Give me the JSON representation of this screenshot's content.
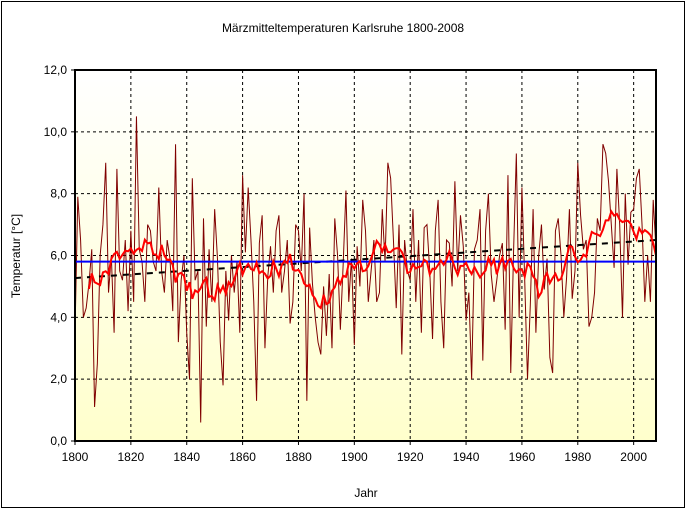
{
  "chart_data": {
    "type": "line",
    "title": "Märzmitteltemperaturen Karlsruhe 1800-2008",
    "xlabel": "Jahr",
    "ylabel": "Temperatur [°C]",
    "xlim": [
      1800,
      2008
    ],
    "ylim": [
      0,
      12
    ],
    "x_ticks": [
      1800,
      1820,
      1840,
      1860,
      1880,
      1900,
      1920,
      1940,
      1960,
      1980,
      2000
    ],
    "y_ticks": [
      0,
      2,
      4,
      6,
      8,
      10,
      12
    ],
    "x_tick_labels": [
      "1800",
      "1820",
      "1840",
      "1860",
      "1880",
      "1900",
      "1920",
      "1940",
      "1960",
      "1980",
      "2000"
    ],
    "y_tick_labels": [
      "0,0",
      "2,0",
      "4,0",
      "6,0",
      "8,0",
      "10,0",
      "12,0"
    ],
    "grid": true,
    "start_year": 1800,
    "annual_values": [
      3.5,
      7.9,
      6.5,
      4.0,
      4.3,
      5.1,
      6.2,
      1.1,
      2.5,
      6.0,
      7.0,
      9.0,
      4.8,
      6.0,
      3.5,
      8.8,
      5.5,
      5.2,
      6.5,
      4.2,
      6.8,
      4.5,
      10.5,
      6.2,
      5.8,
      4.5,
      7.0,
      6.8,
      5.8,
      5.5,
      8.2,
      5.5,
      4.8,
      6.5,
      5.9,
      4.2,
      9.6,
      3.2,
      5.2,
      6.0,
      3.5,
      2.0,
      8.5,
      5.2,
      5.5,
      0.6,
      7.2,
      3.7,
      6.2,
      4.5,
      7.5,
      5.9,
      3.2,
      1.8,
      5.5,
      3.9,
      6.0,
      4.8,
      5.8,
      3.5,
      8.6,
      6.1,
      8.2,
      6.5,
      4.5,
      1.3,
      6.4,
      7.3,
      3.0,
      5.3,
      6.3,
      4.8,
      6.8,
      7.3,
      4.8,
      5.5,
      6.5,
      3.8,
      4.5,
      7.0,
      6.8,
      5.5,
      8.0,
      1.3,
      6.9,
      5.1,
      4.0,
      3.2,
      2.8,
      5.0,
      3.4,
      5.4,
      3.0,
      7.2,
      6.0,
      3.6,
      5.7,
      8.1,
      4.5,
      5.9,
      3.1,
      6.3,
      5.0,
      7.8,
      6.8,
      4.5,
      5.5,
      6.5,
      4.5,
      4.8,
      7.5,
      5.8,
      9.0,
      8.5,
      6.5,
      4.3,
      7.0,
      2.8,
      6.5,
      5.5,
      5.2,
      7.5,
      4.5,
      6.5,
      3.5,
      6.9,
      7.0,
      5.5,
      3.3,
      6.8,
      7.8,
      4.5,
      3.0,
      6.5,
      6.4,
      5.0,
      8.4,
      5.5,
      7.3,
      6.3,
      3.9,
      4.8,
      2.0,
      6.2,
      6.5,
      7.5,
      2.6,
      6.8,
      8.0,
      5.4,
      4.5,
      5.2,
      6.0,
      6.4,
      3.6,
      8.6,
      2.2,
      6.1,
      9.3,
      4.0,
      8.2,
      5.2,
      2.0,
      4.4,
      7.5,
      3.5,
      6.0,
      7.0,
      4.9,
      5.9,
      2.7,
      2.2,
      6.8,
      7.2,
      6.0,
      4.0,
      5.3,
      7.5,
      4.6,
      5.5,
      9.0,
      7.3,
      6.2,
      6.5,
      3.7,
      4.0,
      4.8,
      7.2,
      6.8,
      9.6,
      9.3,
      8.4,
      7.0,
      5.6,
      8.8,
      7.0,
      4.0,
      8.0,
      5.7,
      7.4,
      7.5,
      8.5,
      8.8,
      7.0,
      4.5,
      6.0,
      4.5,
      7.8,
      6.2
    ],
    "mean_value": 5.8,
    "trend_line": {
      "start": [
        1800,
        5.27
      ],
      "end": [
        2008,
        6.5
      ]
    },
    "colors": {
      "annual": "#800000",
      "smoothed": "#ff0000",
      "mean": "#0000ff",
      "trend": "#000000",
      "bg_top": "#ffffff",
      "bg_bottom": "#ffffcc"
    }
  }
}
